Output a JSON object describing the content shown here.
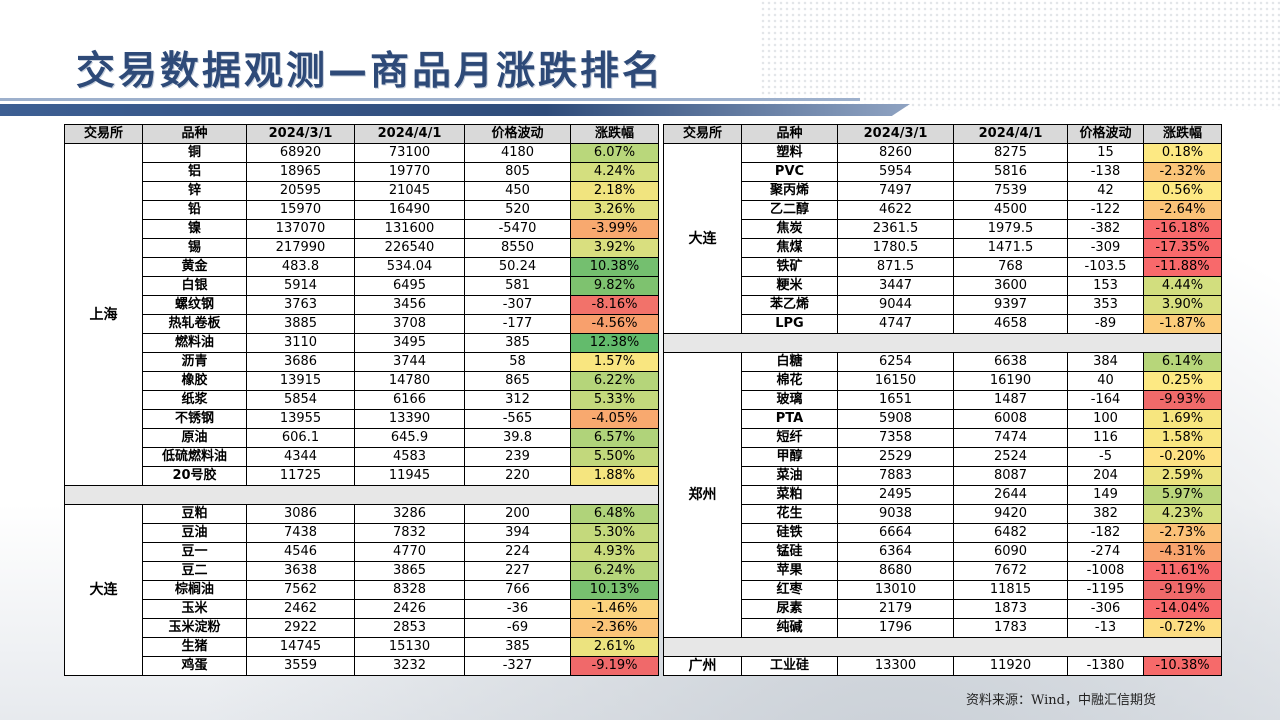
{
  "title": "交易数据观测—商品月涨跌排名",
  "source": "资料来源：Wind，中融汇信期货",
  "headers": [
    "交易所",
    "品种",
    "2024/3/1",
    "2024/4/1",
    "价格波动",
    "涨跌幅"
  ],
  "left": {
    "groups": [
      {
        "exchange": "上海",
        "rows": [
          [
            "铜",
            "68920",
            "73100",
            "4180",
            "6.07%",
            "#b9d77b"
          ],
          [
            "铝",
            "18965",
            "19770",
            "805",
            "4.24%",
            "#d4df7f"
          ],
          [
            "锌",
            "20595",
            "21045",
            "450",
            "2.18%",
            "#f1e47f"
          ],
          [
            "铅",
            "15970",
            "16490",
            "520",
            "3.26%",
            "#e1e17f"
          ],
          [
            "镍",
            "137070",
            "131600",
            "-5470",
            "-3.99%",
            "#f8a96f"
          ],
          [
            "锡",
            "217990",
            "226540",
            "8550",
            "3.92%",
            "#d9df7f"
          ],
          [
            "黄金",
            "483.8",
            "534.04",
            "50.24",
            "10.38%",
            "#74bf6f"
          ],
          [
            "白银",
            "5914",
            "6495",
            "581",
            "9.82%",
            "#7ec26f"
          ],
          [
            "螺纹钢",
            "3763",
            "3456",
            "-307",
            "-8.16%",
            "#f2726a"
          ],
          [
            "热轧卷板",
            "3885",
            "3708",
            "-177",
            "-4.56%",
            "#f8a06d"
          ],
          [
            "燃料油",
            "3110",
            "3495",
            "385",
            "12.38%",
            "#63bb6c"
          ],
          [
            "沥青",
            "3686",
            "3744",
            "58",
            "1.57%",
            "#f9e680"
          ],
          [
            "橡胶",
            "13915",
            "14780",
            "865",
            "6.22%",
            "#b5d57a"
          ],
          [
            "纸浆",
            "5854",
            "6166",
            "312",
            "5.33%",
            "#c4d97c"
          ],
          [
            "不锈钢",
            "13955",
            "13390",
            "-565",
            "-4.05%",
            "#f8a96f"
          ],
          [
            "原油",
            "606.1",
            "645.9",
            "39.8",
            "6.57%",
            "#b0d37a"
          ],
          [
            "低硫燃料油",
            "4344",
            "4583",
            "239",
            "5.50%",
            "#c2d87c"
          ],
          [
            "20号胶",
            "11725",
            "11945",
            "220",
            "1.88%",
            "#f5e57f"
          ]
        ]
      },
      {
        "exchange": "大连",
        "rows": [
          [
            "豆粕",
            "3086",
            "3286",
            "200",
            "6.48%",
            "#b0d37a"
          ],
          [
            "豆油",
            "7438",
            "7832",
            "394",
            "5.30%",
            "#c4d97c"
          ],
          [
            "豆一",
            "4546",
            "4770",
            "224",
            "4.93%",
            "#cadb7d"
          ],
          [
            "豆二",
            "3638",
            "3865",
            "227",
            "6.24%",
            "#b5d57a"
          ],
          [
            "棕榈油",
            "7562",
            "8328",
            "766",
            "10.13%",
            "#78c06f"
          ],
          [
            "玉米",
            "2462",
            "2426",
            "-36",
            "-1.46%",
            "#fbd37d"
          ],
          [
            "玉米淀粉",
            "2922",
            "2853",
            "-69",
            "-2.36%",
            "#fbc579"
          ],
          [
            "生猪",
            "14745",
            "15130",
            "385",
            "2.61%",
            "#ece37f"
          ],
          [
            "鸡蛋",
            "3559",
            "3232",
            "-327",
            "-9.19%",
            "#f0696a"
          ]
        ]
      }
    ]
  },
  "right": {
    "groups": [
      {
        "exchange": "大连",
        "rows": [
          [
            "塑料",
            "8260",
            "8275",
            "15",
            "0.18%",
            "#fde983"
          ],
          [
            "PVC",
            "5954",
            "5816",
            "-138",
            "-2.32%",
            "#fbc579"
          ],
          [
            "聚丙烯",
            "7497",
            "7539",
            "42",
            "0.56%",
            "#fde983"
          ],
          [
            "乙二醇",
            "4622",
            "4500",
            "-122",
            "-2.64%",
            "#fbc278"
          ],
          [
            "焦炭",
            "2361.5",
            "1979.5",
            "-382",
            "-16.18%",
            "#f8696b"
          ],
          [
            "焦煤",
            "1780.5",
            "1471.5",
            "-309",
            "-17.35%",
            "#f8696b"
          ],
          [
            "铁矿",
            "871.5",
            "768",
            "-103.5",
            "-11.88%",
            "#f8696b"
          ],
          [
            "粳米",
            "3447",
            "3600",
            "153",
            "4.44%",
            "#d2de7e"
          ],
          [
            "苯乙烯",
            "9044",
            "9397",
            "353",
            "3.90%",
            "#d9df7f"
          ],
          [
            "LPG",
            "4747",
            "4658",
            "-89",
            "-1.87%",
            "#fccd7b"
          ]
        ]
      },
      {
        "exchange": "郑州",
        "rows": [
          [
            "白糖",
            "6254",
            "6638",
            "384",
            "6.14%",
            "#b7d67a"
          ],
          [
            "棉花",
            "16150",
            "16190",
            "40",
            "0.25%",
            "#fde983"
          ],
          [
            "玻璃",
            "1651",
            "1487",
            "-164",
            "-9.93%",
            "#f06a6a"
          ],
          [
            "PTA",
            "5908",
            "6008",
            "100",
            "1.69%",
            "#f7e67f"
          ],
          [
            "短纤",
            "7358",
            "7474",
            "116",
            "1.58%",
            "#f9e680"
          ],
          [
            "甲醇",
            "2529",
            "2524",
            "-5",
            "-0.20%",
            "#fee283"
          ],
          [
            "菜油",
            "7883",
            "8087",
            "204",
            "2.59%",
            "#ece37f"
          ],
          [
            "菜粕",
            "2495",
            "2644",
            "149",
            "5.97%",
            "#bbd67b"
          ],
          [
            "花生",
            "9038",
            "9420",
            "382",
            "4.23%",
            "#d4df7f"
          ],
          [
            "硅铁",
            "6664",
            "6482",
            "-182",
            "-2.73%",
            "#fbc178"
          ],
          [
            "锰硅",
            "6364",
            "6090",
            "-274",
            "-4.31%",
            "#f9a46e"
          ],
          [
            "苹果",
            "8680",
            "7672",
            "-1008",
            "-11.61%",
            "#f8696b"
          ],
          [
            "红枣",
            "13010",
            "11815",
            "-1195",
            "-9.19%",
            "#f0696a"
          ],
          [
            "尿素",
            "2179",
            "1873",
            "-306",
            "-14.04%",
            "#f8696b"
          ],
          [
            "纯碱",
            "1796",
            "1783",
            "-13",
            "-0.72%",
            "#fddd81"
          ]
        ]
      },
      {
        "exchange": "广州",
        "rows": [
          [
            "工业硅",
            "13300",
            "11920",
            "-1380",
            "-10.38%",
            "#f66a6a"
          ]
        ]
      }
    ]
  }
}
